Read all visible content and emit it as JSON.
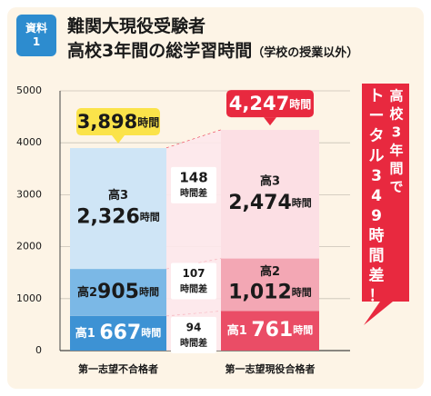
{
  "header": {
    "badge_line1": "資料",
    "badge_line2": "1",
    "title_line1": "難関大現役受験者",
    "title_line2_main": "高校3年間の総学習時間",
    "title_line2_sub": "（学校の授業以外）"
  },
  "chart_data": {
    "type": "bar",
    "stacked": true,
    "ylim": [
      0,
      5000
    ],
    "yticks": [
      "0",
      "1000",
      "2000",
      "3000",
      "4000",
      "5000"
    ],
    "categories": [
      "第一志望不合格者",
      "第一志望現役合格者"
    ],
    "series": [
      {
        "name": "高1",
        "values": [
          667,
          761
        ]
      },
      {
        "name": "高2",
        "values": [
          905,
          1012
        ]
      },
      {
        "name": "高3",
        "values": [
          2326,
          2474
        ]
      }
    ],
    "totals": [
      {
        "number": "3,898",
        "unit": "時間"
      },
      {
        "number": "4,247",
        "unit": "時間"
      }
    ],
    "segment_labels": [
      [
        {
          "label": "高1",
          "number": "667",
          "unit": "時間"
        },
        {
          "label": "高2",
          "number": "905",
          "unit": "時間"
        },
        {
          "label": "高3",
          "number": "2,326",
          "unit": "時間"
        }
      ],
      [
        {
          "label": "高1",
          "number": "761",
          "unit": "時間"
        },
        {
          "label": "高2",
          "number": "1,012",
          "unit": "時間"
        },
        {
          "label": "高3",
          "number": "2,474",
          "unit": "時間"
        }
      ]
    ],
    "differences": [
      {
        "value": "94",
        "unit": "時間差"
      },
      {
        "value": "107",
        "unit": "時間差"
      },
      {
        "value": "148",
        "unit": "時間差"
      }
    ],
    "callout": "高校3年間でトータル349時間差！",
    "colors": {
      "left": [
        "#3d92d4",
        "#7bb8e6",
        "#cfe5f6"
      ],
      "right": [
        "#ea4d66",
        "#f3a7b4",
        "#fcdfe4"
      ],
      "left_total": "#fbe34a",
      "right_total": "#e8293f",
      "callout": "#e8293f"
    }
  }
}
